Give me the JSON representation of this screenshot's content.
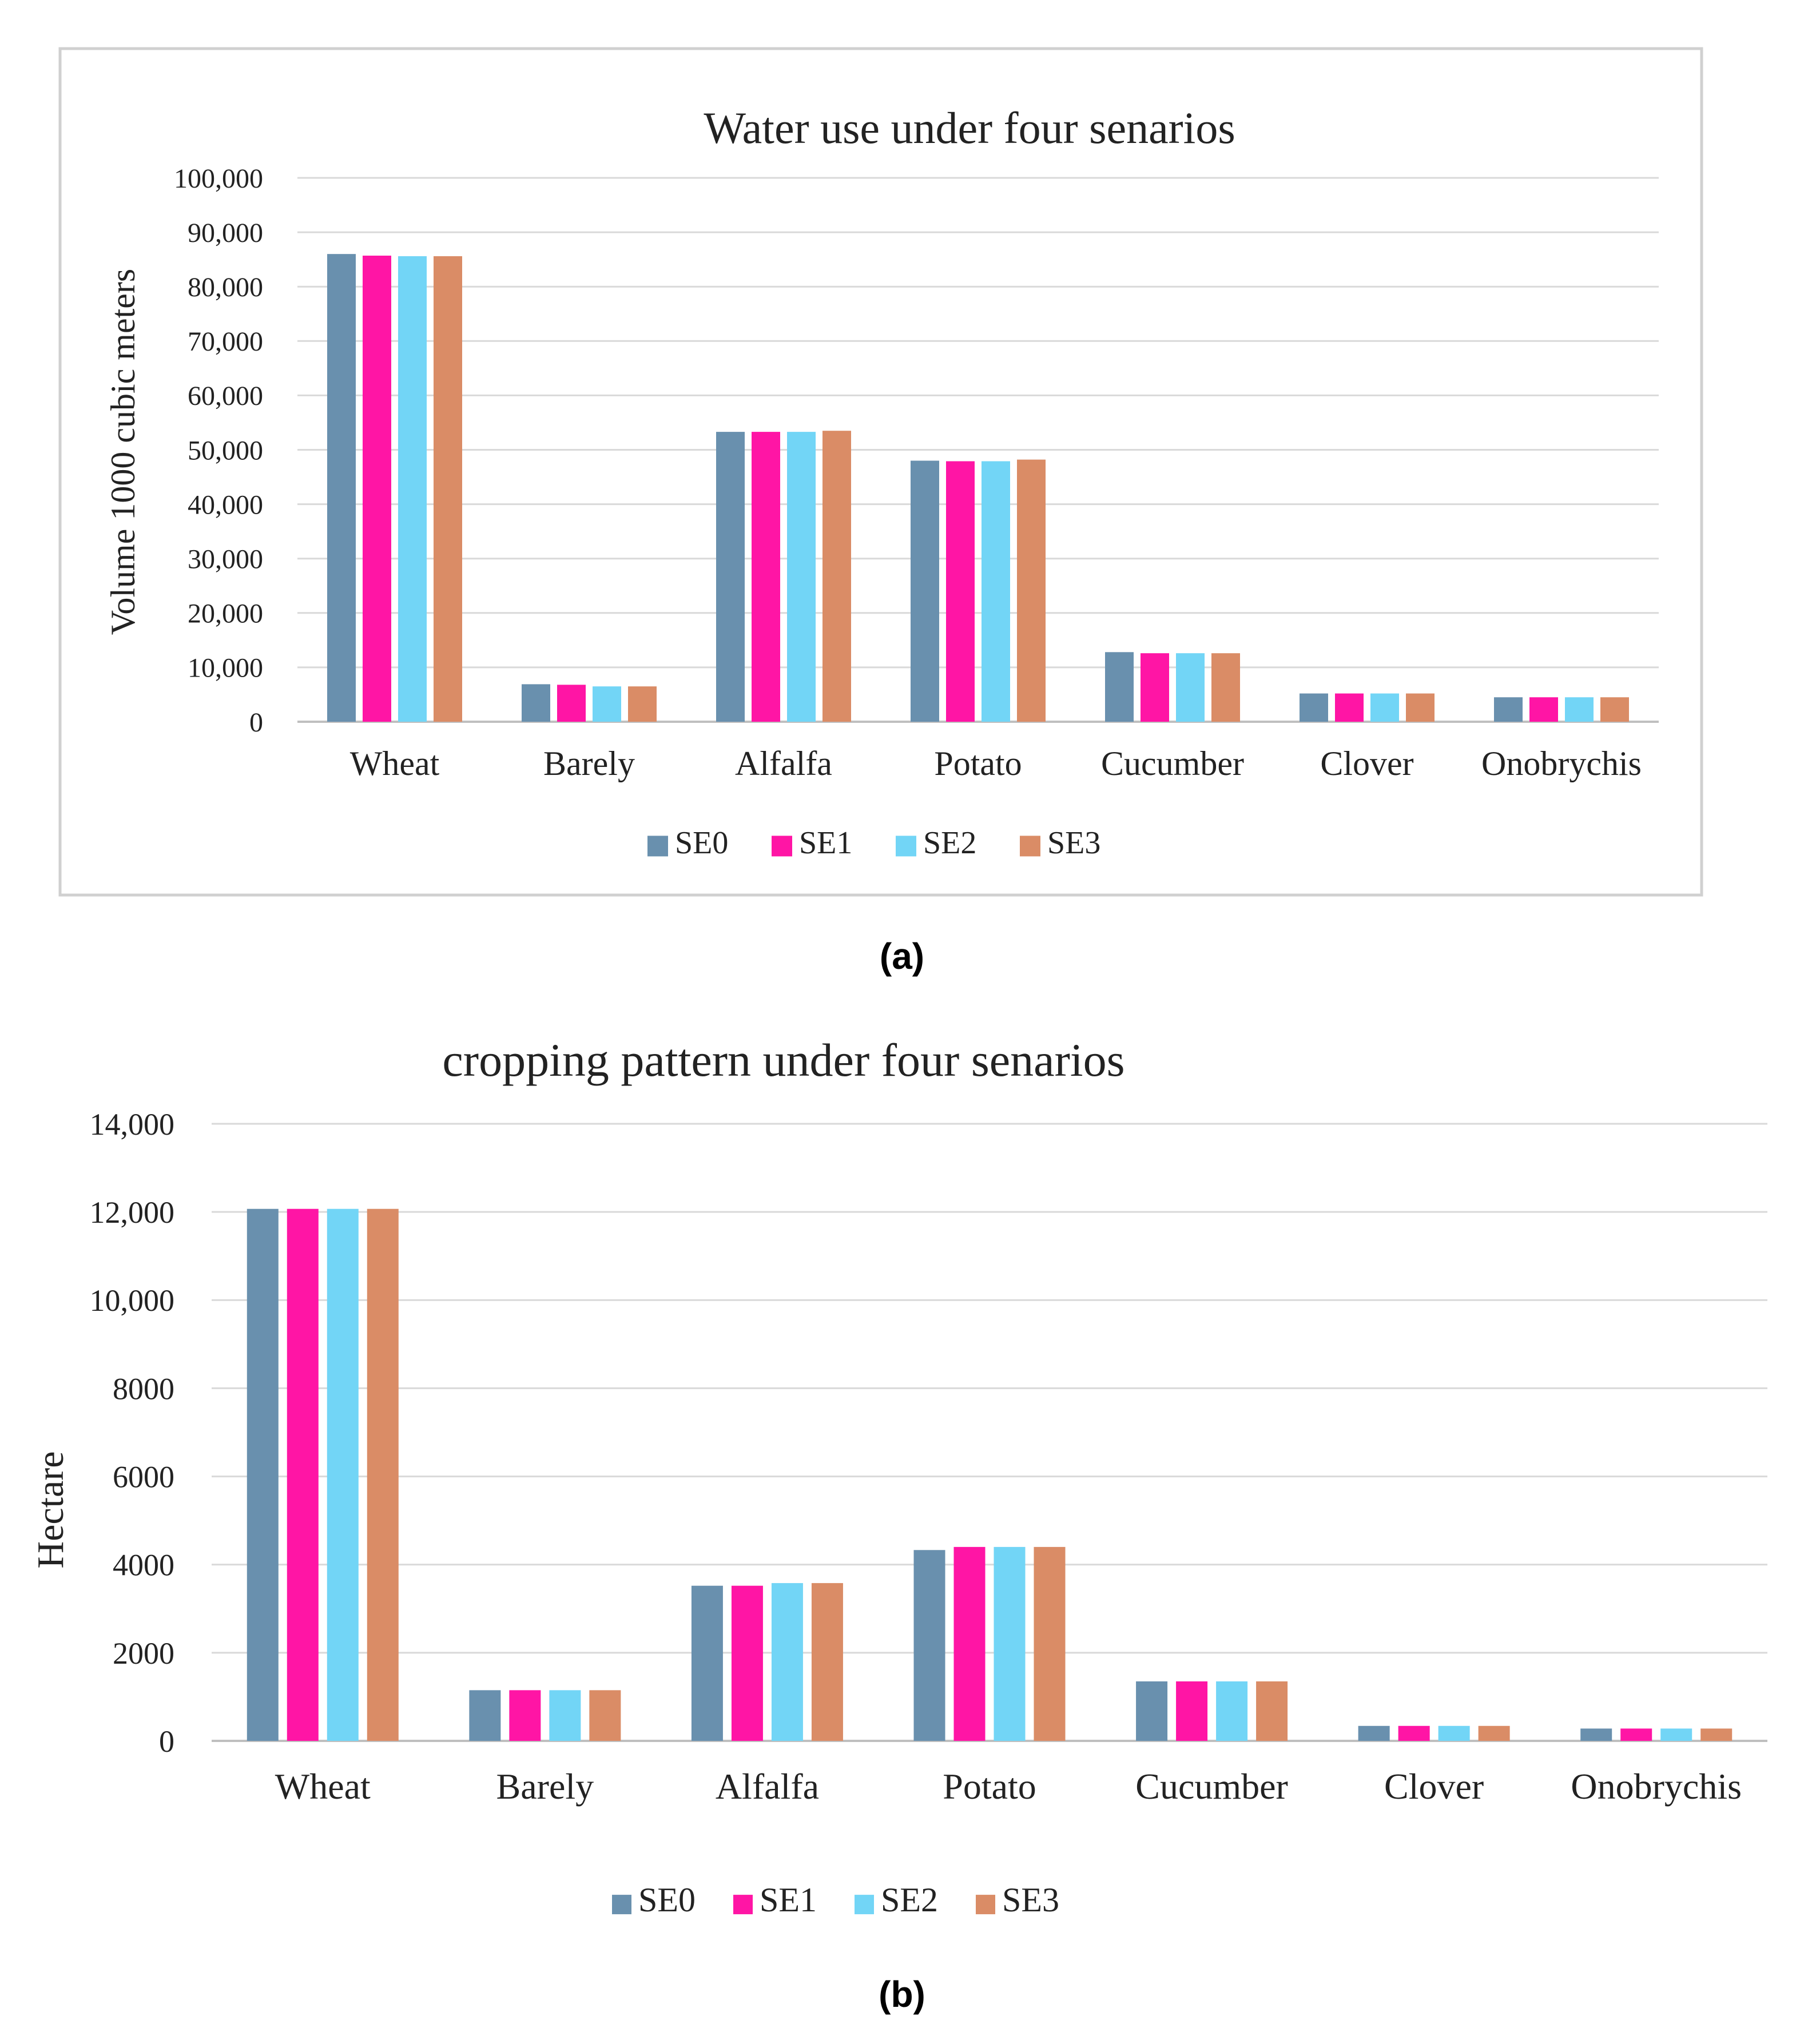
{
  "chart_data": [
    {
      "type": "bar",
      "title": "Water use under four senarios",
      "xlabel": "",
      "ylabel": "Volume 1000 cubic meters",
      "categories": [
        "Wheat",
        "Barely",
        "Alfalfa",
        "Potato",
        "Cucumber",
        "Clover",
        "Onobrychis"
      ],
      "ylim": [
        0,
        100000
      ],
      "yticks": [
        0,
        10000,
        20000,
        30000,
        40000,
        50000,
        60000,
        70000,
        80000,
        90000,
        100000
      ],
      "ytick_labels": [
        "0",
        "10,000",
        "20,000",
        "30,000",
        "40,000",
        "50,000",
        "60,000",
        "70,000",
        "80,000",
        "90,000",
        "100,000"
      ],
      "grid": true,
      "legend": "bottom",
      "series": [
        {
          "name": "SE0",
          "color": "#6990AE",
          "values": [
            86000,
            6900,
            53300,
            48000,
            12800,
            5200,
            4500
          ]
        },
        {
          "name": "SE1",
          "color": "#FF15A5",
          "values": [
            85700,
            6800,
            53300,
            47900,
            12600,
            5200,
            4500
          ]
        },
        {
          "name": "SE2",
          "color": "#72D5F6",
          "values": [
            85600,
            6500,
            53300,
            47900,
            12600,
            5200,
            4500
          ]
        },
        {
          "name": "SE3",
          "color": "#DA8C66",
          "values": [
            85600,
            6500,
            53500,
            48200,
            12600,
            5200,
            4500
          ]
        }
      ]
    },
    {
      "type": "bar",
      "title": "cropping pattern under four senarios",
      "xlabel": "",
      "ylabel": "Hectare",
      "categories": [
        "Wheat",
        "Barely",
        "Alfalfa",
        "Potato",
        "Cucumber",
        "Clover",
        "Onobrychis"
      ],
      "ylim": [
        0,
        14000
      ],
      "yticks": [
        0,
        2000,
        4000,
        6000,
        8000,
        10000,
        12000,
        14000
      ],
      "ytick_labels": [
        "0",
        "2000",
        "4000",
        "6000",
        "8000",
        "10,000",
        "12,000",
        "14,000"
      ],
      "grid": true,
      "legend": "bottom",
      "series": [
        {
          "name": "SE0",
          "color": "#6990AE",
          "values": [
            12070,
            1150,
            3520,
            4330,
            1350,
            340,
            280
          ]
        },
        {
          "name": "SE1",
          "color": "#FF15A5",
          "values": [
            12070,
            1150,
            3520,
            4400,
            1350,
            340,
            280
          ]
        },
        {
          "name": "SE2",
          "color": "#72D5F6",
          "values": [
            12070,
            1150,
            3580,
            4400,
            1350,
            340,
            280
          ]
        },
        {
          "name": "SE3",
          "color": "#DA8C66",
          "values": [
            12070,
            1150,
            3580,
            4400,
            1350,
            340,
            280
          ]
        }
      ]
    }
  ],
  "captions": {
    "a": "(a)",
    "b": "(b)"
  }
}
